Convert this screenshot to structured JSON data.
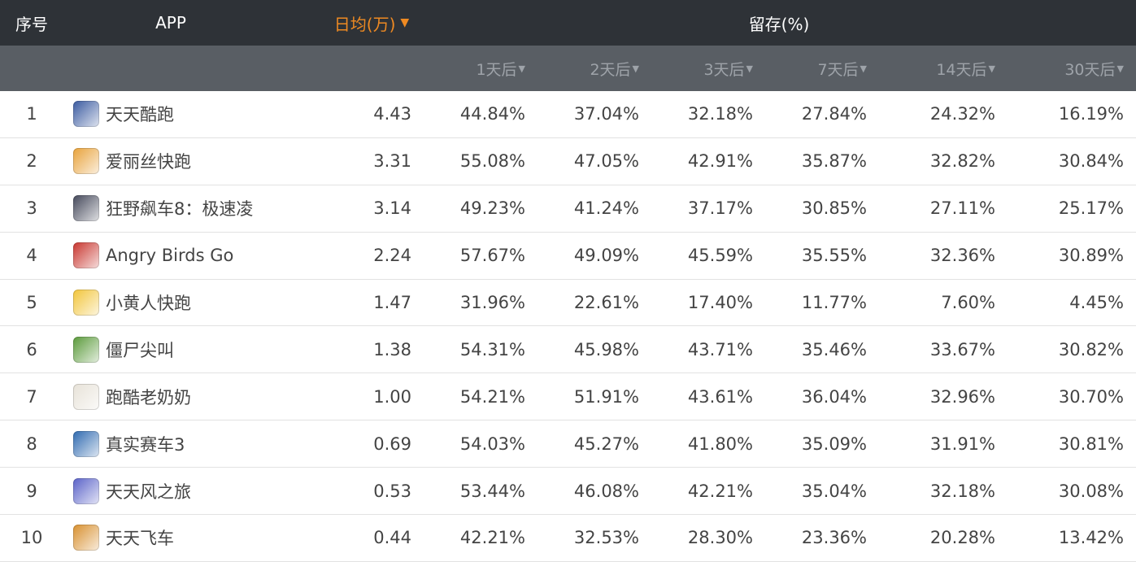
{
  "header": {
    "index": "序号",
    "app": "APP",
    "daily_avg": "日均(万)",
    "retention": "留存(%)",
    "sort_arrow": "▼",
    "sub_arrow": "▼",
    "sub_columns": [
      "1天后",
      "2天后",
      "3天后",
      "7天后",
      "14天后",
      "30天后"
    ]
  },
  "colors": {
    "header_bg": "#2e3237",
    "subheader_bg": "#595e64",
    "active_sort": "#ef8a22",
    "row_border": "#e2e2e2"
  },
  "rows": [
    {
      "idx": "1",
      "name": "天天酷跑",
      "avg": "4.43",
      "d1": "44.84%",
      "d2": "37.04%",
      "d3": "32.18%",
      "d7": "27.84%",
      "d14": "24.32%",
      "d30": "16.19%",
      "icon": "tiantian-kupao-icon",
      "icon_color": "#3a5aa0"
    },
    {
      "idx": "2",
      "name": "爱丽丝快跑",
      "avg": "3.31",
      "d1": "55.08%",
      "d2": "47.05%",
      "d3": "42.91%",
      "d7": "35.87%",
      "d14": "32.82%",
      "d30": "30.84%",
      "icon": "alice-run-icon",
      "icon_color": "#e8a23a"
    },
    {
      "idx": "3",
      "name": "狂野飙车8：极速凌",
      "avg": "3.14",
      "d1": "49.23%",
      "d2": "41.24%",
      "d3": "37.17%",
      "d7": "30.85%",
      "d14": "27.11%",
      "d30": "25.17%",
      "icon": "asphalt8-icon",
      "icon_color": "#44485a"
    },
    {
      "idx": "4",
      "name": "Angry Birds Go",
      "avg": "2.24",
      "d1": "57.67%",
      "d2": "49.09%",
      "d3": "45.59%",
      "d7": "35.55%",
      "d14": "32.36%",
      "d30": "30.89%",
      "icon": "angry-birds-go-icon",
      "icon_color": "#c8352e"
    },
    {
      "idx": "5",
      "name": "小黄人快跑",
      "avg": "1.47",
      "d1": "31.96%",
      "d2": "22.61%",
      "d3": "17.40%",
      "d7": "11.77%",
      "d14": "7.60%",
      "d30": "4.45%",
      "icon": "minion-rush-icon",
      "icon_color": "#f2c53a"
    },
    {
      "idx": "6",
      "name": "僵尸尖叫",
      "avg": "1.38",
      "d1": "54.31%",
      "d2": "45.98%",
      "d3": "43.71%",
      "d7": "35.46%",
      "d14": "33.67%",
      "d30": "30.82%",
      "icon": "zombie-scream-icon",
      "icon_color": "#5a9a3a"
    },
    {
      "idx": "7",
      "name": "跑酷老奶奶",
      "avg": "1.00",
      "d1": "54.21%",
      "d2": "51.91%",
      "d3": "43.61%",
      "d7": "36.04%",
      "d14": "32.96%",
      "d30": "30.70%",
      "icon": "granny-run-icon",
      "icon_color": "#e7e2d8"
    },
    {
      "idx": "8",
      "name": "真实赛车3",
      "avg": "0.69",
      "d1": "54.03%",
      "d2": "45.27%",
      "d3": "41.80%",
      "d7": "35.09%",
      "d14": "31.91%",
      "d30": "30.81%",
      "icon": "real-racing3-icon",
      "icon_color": "#2f6ab0"
    },
    {
      "idx": "9",
      "name": "天天风之旅",
      "avg": "0.53",
      "d1": "53.44%",
      "d2": "46.08%",
      "d3": "42.21%",
      "d7": "35.04%",
      "d14": "32.18%",
      "d30": "30.08%",
      "icon": "wind-journey-icon",
      "icon_color": "#5a62c8"
    },
    {
      "idx": "10",
      "name": "天天飞车",
      "avg": "0.44",
      "d1": "42.21%",
      "d2": "32.53%",
      "d3": "28.30%",
      "d7": "23.36%",
      "d14": "20.28%",
      "d30": "13.42%",
      "icon": "tiantian-feiche-icon",
      "icon_color": "#d8902f"
    }
  ]
}
